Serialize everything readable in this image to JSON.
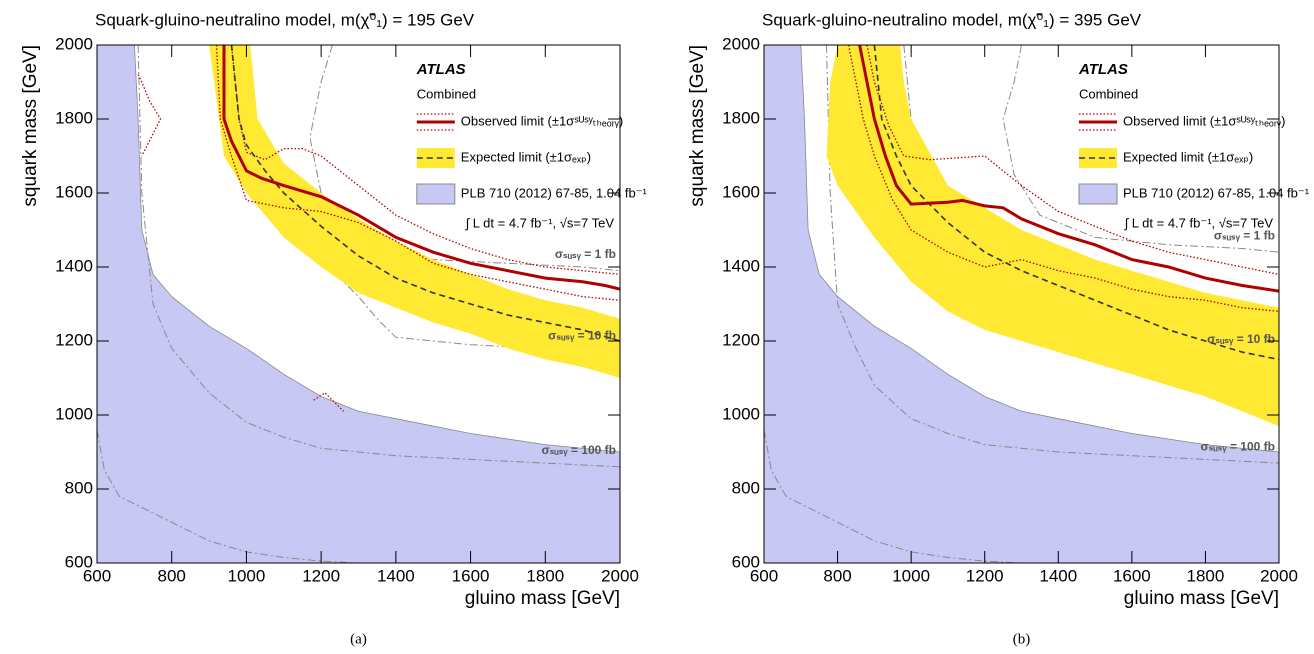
{
  "chart_data": [
    {
      "type": "line",
      "title": "Squark-gluino-neutralino model,  m(χ̃⁰₁) = 195 GeV",
      "x_label": "gluino mass [GeV]",
      "y_label": "squark mass [GeV]",
      "experiment": "ATLAS",
      "note": "Combined",
      "luminosity": "∫ L dt = 4.7 fb⁻¹, √s=7 TeV",
      "caption": "(a)",
      "legend": "upper right",
      "xlim": [
        600,
        2000
      ],
      "ylim": [
        600,
        2000
      ],
      "xticks": [
        600,
        800,
        1000,
        1200,
        1400,
        1600,
        1800,
        2000
      ],
      "yticks": [
        600,
        800,
        1000,
        1200,
        1400,
        1600,
        1800,
        2000
      ],
      "series": [
        {
          "name": "PLB 710 (2012) 67-85, 1.04 fb⁻¹",
          "color": "#c8c8f5",
          "style": "fill",
          "x": [
            600,
            600,
            700,
            710,
            720,
            750,
            800,
            900,
            1000,
            1100,
            1200,
            1300,
            1400,
            1600,
            1800,
            2000,
            2000
          ],
          "y": [
            600,
            2000,
            2000,
            1800,
            1500,
            1380,
            1320,
            1240,
            1180,
            1110,
            1050,
            1010,
            990,
            950,
            920,
            900,
            600
          ]
        },
        {
          "label": "σₛᵤₛᵧ = 1 fb",
          "color": "#888888",
          "style": "dashdot",
          "x": [
            1230,
            1200,
            1170,
            1200,
            1280,
            1350,
            1500,
            1700,
            1900,
            2000
          ],
          "y": [
            2000,
            1900,
            1750,
            1600,
            1480,
            1440,
            1420,
            1410,
            1400,
            1390
          ]
        },
        {
          "label": "σₛᵤₛᵧ = 10 fb",
          "color": "#888888",
          "style": "dashdot",
          "x": [
            1000,
            1010,
            1050,
            1100,
            1200,
            1300,
            1350,
            1400,
            1600,
            1800,
            2000
          ],
          "y": [
            2000,
            1800,
            1650,
            1550,
            1420,
            1320,
            1260,
            1210,
            1190,
            1180,
            1170
          ]
        },
        {
          "label": "σₛᵤₛᵧ = 100 fb",
          "color": "#888888",
          "style": "dashdot",
          "x": [
            710,
            720,
            750,
            800,
            900,
            1000,
            1100,
            1200,
            1400,
            1600,
            1800,
            2000
          ],
          "y": [
            2000,
            1600,
            1300,
            1180,
            1060,
            980,
            940,
            910,
            890,
            880,
            870,
            860
          ]
        },
        {
          "color": "#888888",
          "style": "dashdot",
          "x": [
            600,
            620,
            660,
            720,
            800,
            900,
            1000,
            1100,
            1200,
            1300
          ],
          "y": [
            960,
            850,
            780,
            750,
            710,
            660,
            630,
            615,
            605,
            600
          ]
        },
        {
          "color": "#ffe932",
          "style": "band",
          "x": [
            1010,
            1030,
            1100,
            1200,
            1300,
            1400,
            1500,
            1600,
            1700,
            1800,
            1900,
            2000,
            2000,
            1900,
            1800,
            1700,
            1600,
            1500,
            1400,
            1300,
            1200,
            1100,
            1000,
            940,
            900
          ],
          "y": [
            2000,
            1800,
            1680,
            1600,
            1530,
            1470,
            1420,
            1380,
            1340,
            1310,
            1290,
            1260,
            1100,
            1130,
            1150,
            1180,
            1220,
            1250,
            1290,
            1330,
            1400,
            1480,
            1600,
            1700,
            2000
          ]
        },
        {
          "color": "#b00000",
          "style": "dotted",
          "x": [
            960,
            980,
            1000,
            1050,
            1100,
            1150,
            1200,
            1300,
            1400,
            1500,
            1600,
            1700,
            1800,
            1900,
            2000
          ],
          "y": [
            2000,
            1800,
            1710,
            1690,
            1720,
            1720,
            1700,
            1620,
            1540,
            1490,
            1450,
            1420,
            1400,
            1390,
            1380
          ]
        },
        {
          "color": "#b00000",
          "style": "dotted",
          "x": [
            920,
            930,
            960,
            1000,
            1100,
            1200,
            1300,
            1400,
            1500,
            1600,
            1700,
            1800,
            1900,
            2000
          ],
          "y": [
            2000,
            1800,
            1700,
            1580,
            1560,
            1550,
            1520,
            1470,
            1410,
            1380,
            1360,
            1340,
            1320,
            1310
          ]
        },
        {
          "color": "#b00000",
          "style": "dotted",
          "x": [
            710,
            720,
            740,
            770,
            750,
            720,
            null,
            1180,
            1210,
            1240,
            1260
          ],
          "y": [
            1920,
            1900,
            1850,
            1800,
            1760,
            1700,
            null,
            1040,
            1060,
            1030,
            1010
          ]
        },
        {
          "name": "Expected limit (±1σₑₓₚ)",
          "color": "#333333",
          "style": "dashed",
          "x": [
            960,
            980,
            1000,
            1050,
            1100,
            1200,
            1300,
            1400,
            1500,
            1600,
            1700,
            1800,
            1900,
            2000
          ],
          "y": [
            2000,
            1800,
            1730,
            1660,
            1600,
            1510,
            1430,
            1370,
            1330,
            1300,
            1270,
            1250,
            1230,
            1200
          ]
        },
        {
          "name": "Observed limit (±1σˢᵁˢʸₜₕₑₒᵣᵧ)",
          "color": "#b00000",
          "style": "solid",
          "x": [
            940,
            940,
            960,
            1000,
            1040,
            1100,
            1200,
            1300,
            1400,
            1500,
            1600,
            1700,
            1800,
            1900,
            1960,
            2000
          ],
          "y": [
            2000,
            1800,
            1740,
            1660,
            1640,
            1620,
            1590,
            1540,
            1480,
            1440,
            1410,
            1390,
            1370,
            1360,
            1350,
            1340
          ]
        }
      ]
    },
    {
      "type": "line",
      "title": "Squark-gluino-neutralino model,  m(χ̃⁰₁) = 395 GeV",
      "x_label": "gluino mass [GeV]",
      "y_label": "squark mass [GeV]",
      "experiment": "ATLAS",
      "note": "Combined",
      "luminosity": "∫ L dt = 4.7 fb⁻¹, √s=7 TeV",
      "caption": "(b)",
      "legend": "upper right",
      "xlim": [
        600,
        2000
      ],
      "ylim": [
        600,
        2000
      ],
      "xticks": [
        600,
        800,
        1000,
        1200,
        1400,
        1600,
        1800,
        2000
      ],
      "yticks": [
        600,
        800,
        1000,
        1200,
        1400,
        1600,
        1800,
        2000
      ],
      "series": [
        {
          "name": "PLB 710 (2012) 67-85, 1.04 fb⁻¹",
          "color": "#c8c8f5",
          "style": "fill",
          "x": [
            600,
            600,
            700,
            710,
            720,
            750,
            800,
            900,
            1000,
            1100,
            1200,
            1300,
            1400,
            1600,
            1800,
            2000,
            2000
          ],
          "y": [
            600,
            2000,
            2000,
            1800,
            1500,
            1380,
            1320,
            1240,
            1180,
            1110,
            1050,
            1010,
            990,
            950,
            920,
            900,
            600
          ]
        },
        {
          "label": "σₛᵤₛᵧ = 1 fb",
          "color": "#888888",
          "style": "dashdot",
          "x": [
            1300,
            1280,
            1250,
            1280,
            1350,
            1500,
            1700,
            1900,
            2000
          ],
          "y": [
            2000,
            1900,
            1800,
            1650,
            1540,
            1480,
            1460,
            1450,
            1440
          ]
        },
        {
          "label": "σₛᵤₛᵧ = 10 fb",
          "color": "#888888",
          "style": "dashdot",
          "x": [
            980,
            1000,
            1050,
            1100,
            1200,
            1300,
            1400,
            1600,
            1800,
            2000
          ],
          "y": [
            2000,
            1800,
            1650,
            1550,
            1420,
            1320,
            1250,
            1200,
            1180,
            1160
          ]
        },
        {
          "label": "σₛᵤₛᵧ = 100 fb",
          "color": "#888888",
          "style": "dashdot",
          "x": [
            770,
            780,
            800,
            850,
            900,
            1000,
            1100,
            1200,
            1400,
            1600,
            1800,
            2000
          ],
          "y": [
            2000,
            1600,
            1300,
            1180,
            1080,
            990,
            950,
            920,
            900,
            890,
            880,
            870
          ]
        },
        {
          "color": "#888888",
          "style": "dashdot",
          "x": [
            600,
            620,
            660,
            720,
            800,
            900,
            1000,
            1100,
            1200,
            1300
          ],
          "y": [
            960,
            850,
            780,
            750,
            710,
            660,
            630,
            615,
            605,
            600
          ]
        },
        {
          "color": "#ffe932",
          "style": "band",
          "x": [
            970,
            980,
            1000,
            1100,
            1200,
            1300,
            1400,
            1500,
            1600,
            1700,
            1800,
            1900,
            2000,
            2000,
            1900,
            1800,
            1700,
            1600,
            1500,
            1400,
            1300,
            1200,
            1100,
            1000,
            900,
            800,
            770,
            780,
            800
          ],
          "y": [
            2000,
            1900,
            1800,
            1620,
            1560,
            1500,
            1460,
            1420,
            1390,
            1360,
            1330,
            1310,
            1290,
            970,
            1010,
            1050,
            1080,
            1110,
            1140,
            1170,
            1200,
            1230,
            1280,
            1360,
            1480,
            1620,
            1700,
            1900,
            2000
          ]
        },
        {
          "color": "#b00000",
          "style": "dotted",
          "x": [
            880,
            900,
            940,
            980,
            1050,
            1200,
            1300,
            1400,
            1500,
            1600,
            1700,
            1800,
            1900,
            2000
          ],
          "y": [
            2000,
            1900,
            1780,
            1700,
            1690,
            1700,
            1620,
            1550,
            1510,
            1470,
            1440,
            1420,
            1400,
            1380
          ]
        },
        {
          "color": "#b00000",
          "style": "dotted",
          "x": [
            830,
            850,
            870,
            900,
            950,
            1000,
            1100,
            1200,
            1300,
            1400,
            1500,
            1600,
            1700,
            1800,
            1900,
            2000
          ],
          "y": [
            2000,
            1900,
            1800,
            1700,
            1580,
            1500,
            1440,
            1400,
            1420,
            1390,
            1370,
            1340,
            1320,
            1310,
            1290,
            1280
          ]
        },
        {
          "name": "Expected limit (±1σₑₓₚ)",
          "color": "#333333",
          "style": "dashed",
          "x": [
            900,
            920,
            960,
            1000,
            1100,
            1200,
            1300,
            1400,
            1500,
            1600,
            1700,
            1800,
            1900,
            2000
          ],
          "y": [
            2000,
            1800,
            1700,
            1620,
            1520,
            1440,
            1390,
            1350,
            1310,
            1270,
            1230,
            1200,
            1170,
            1150
          ]
        },
        {
          "name": "Observed limit (±1σˢᵁˢʸₜₕₑₒᵣᵧ)",
          "color": "#b00000",
          "style": "solid",
          "x": [
            860,
            880,
            900,
            930,
            960,
            1000,
            1100,
            1140,
            1200,
            1250,
            1300,
            1400,
            1500,
            1600,
            1700,
            1800,
            1900,
            2000
          ],
          "y": [
            2000,
            1900,
            1800,
            1700,
            1620,
            1570,
            1575,
            1580,
            1565,
            1560,
            1530,
            1490,
            1460,
            1420,
            1400,
            1370,
            1350,
            1335
          ]
        }
      ]
    }
  ]
}
